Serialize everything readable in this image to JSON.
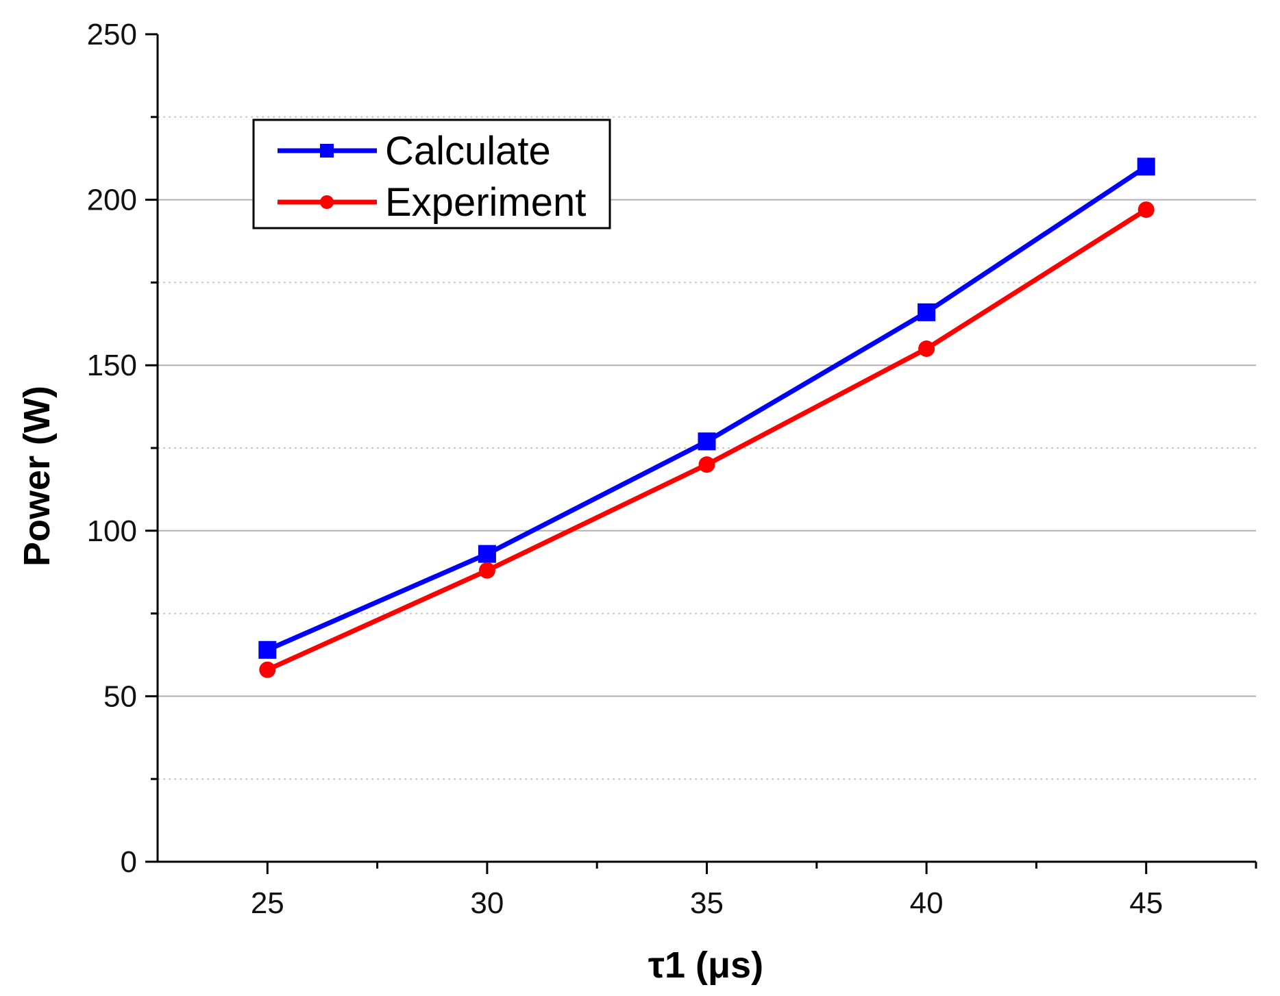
{
  "chart_data": {
    "type": "line",
    "title": "",
    "xlabel": "τ1 (μs)",
    "ylabel": "Power (W)",
    "x": [
      25,
      30,
      35,
      40,
      45
    ],
    "xlim": [
      22.5,
      47.5
    ],
    "ylim": [
      0,
      250
    ],
    "xticks": [
      25,
      30,
      35,
      40,
      45
    ],
    "yticks": [
      0,
      50,
      100,
      150,
      200,
      250
    ],
    "x_minor_ticks": [
      27.5,
      32.5,
      37.5,
      42.5,
      47.5
    ],
    "grid": {
      "major": true,
      "minor": true,
      "major_color": "#b0b0b0",
      "minor_color": "#c8c8c8"
    },
    "legend_position": "top-left",
    "series": [
      {
        "name": "Calculate",
        "marker": "square",
        "color": "#0000ff",
        "values": [
          64,
          93,
          127,
          166,
          210
        ]
      },
      {
        "name": "Experiment",
        "marker": "circle",
        "color": "#ff0000",
        "values": [
          58,
          88,
          120,
          155,
          197
        ]
      }
    ]
  }
}
